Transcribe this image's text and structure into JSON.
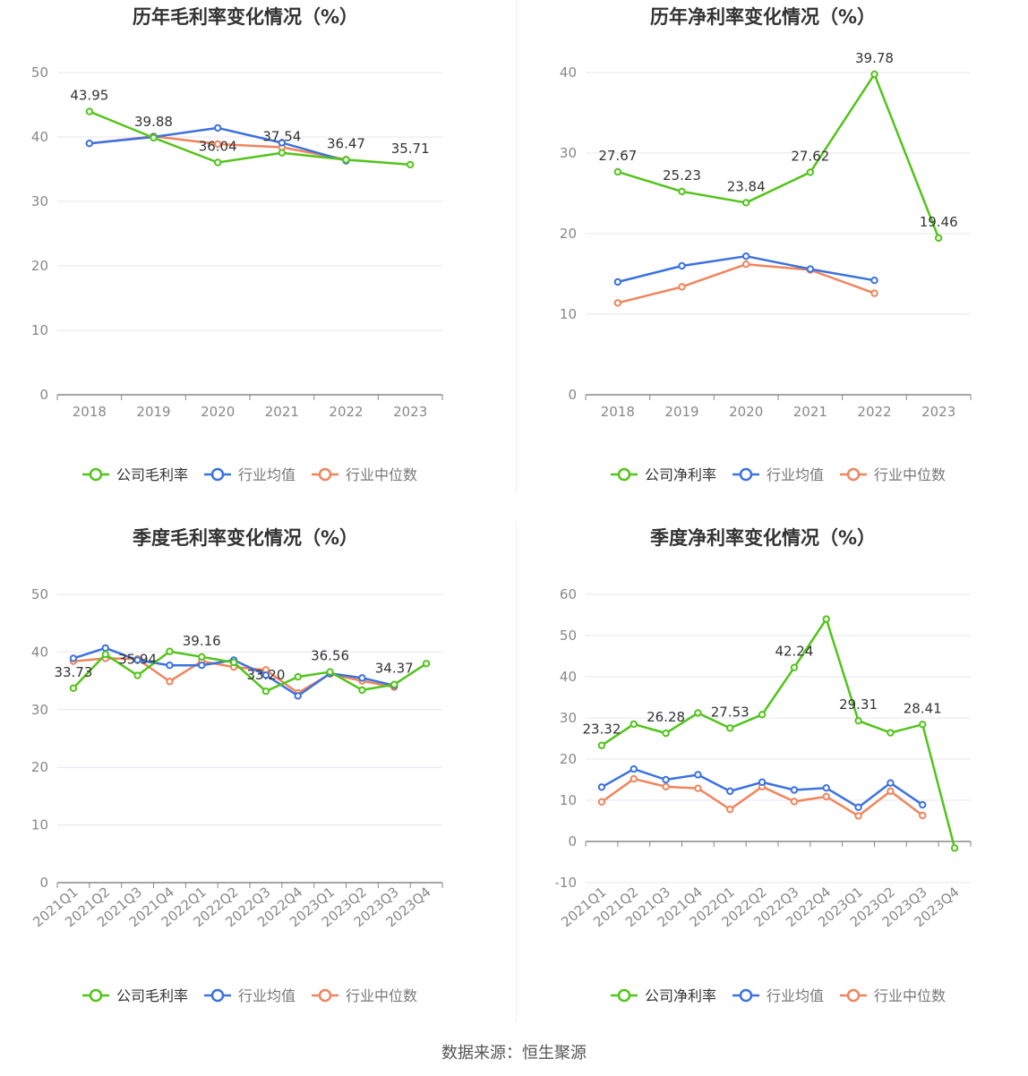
{
  "colors": {
    "company": "#52c41a",
    "avg": "#3b72e0",
    "median": "#f0845c",
    "grid": "#e6e6f0",
    "axis": "#888888"
  },
  "source": "数据来源：恒生聚源",
  "chart_data": [
    {
      "type": "line",
      "title": "历年毛利率变化情况（%）",
      "categories": [
        "2018",
        "2019",
        "2020",
        "2021",
        "2022",
        "2023"
      ],
      "ylim": [
        0,
        50
      ],
      "yticks": [
        0,
        10,
        20,
        30,
        40,
        50
      ],
      "series": [
        {
          "name": "公司毛利率",
          "key": "company",
          "values": [
            43.95,
            39.88,
            36.04,
            37.54,
            36.47,
            35.71
          ],
          "labels": [
            "43.95",
            "39.88",
            "36.04",
            "37.54",
            "36.47",
            "35.71"
          ]
        },
        {
          "name": "行业均值",
          "key": "avg",
          "values": [
            39.0,
            40.0,
            41.4,
            39.1,
            36.3,
            null
          ]
        },
        {
          "name": "行业中位数",
          "key": "median",
          "values": [
            39.0,
            40.1,
            38.9,
            38.4,
            36.5,
            null
          ]
        }
      ],
      "legend": "bottom"
    },
    {
      "type": "line",
      "title": "历年净利率变化情况（%）",
      "categories": [
        "2018",
        "2019",
        "2020",
        "2021",
        "2022",
        "2023"
      ],
      "ylim": [
        0,
        40
      ],
      "yticks": [
        0,
        10,
        20,
        30,
        40
      ],
      "series": [
        {
          "name": "公司净利率",
          "key": "company",
          "values": [
            27.67,
            25.23,
            23.84,
            27.62,
            39.78,
            19.46
          ],
          "labels": [
            "27.67",
            "25.23",
            "23.84",
            "27.62",
            "39.78",
            "19.46"
          ]
        },
        {
          "name": "行业均值",
          "key": "avg",
          "values": [
            14.0,
            16.0,
            17.2,
            15.6,
            14.2,
            null
          ]
        },
        {
          "name": "行业中位数",
          "key": "median",
          "values": [
            11.4,
            13.4,
            16.2,
            15.5,
            12.6,
            null
          ]
        }
      ],
      "legend": "bottom"
    },
    {
      "type": "line",
      "title": "季度毛利率变化情况（%）",
      "categories": [
        "2021Q1",
        "2021Q2",
        "2021Q3",
        "2021Q4",
        "2022Q1",
        "2022Q2",
        "2022Q3",
        "2022Q4",
        "2023Q1",
        "2023Q2",
        "2023Q3",
        "2023Q4"
      ],
      "ylim": [
        0,
        50
      ],
      "yticks": [
        0,
        10,
        20,
        30,
        40,
        50
      ],
      "series": [
        {
          "name": "公司毛利率",
          "key": "company",
          "values": [
            33.73,
            39.6,
            35.94,
            40.1,
            39.16,
            38.2,
            33.2,
            35.7,
            36.56,
            33.4,
            34.37,
            38.0
          ],
          "labels": [
            "33.73",
            "",
            "35.94",
            "",
            "39.16",
            "",
            "33.20",
            "",
            "36.56",
            "",
            "34.37",
            ""
          ]
        },
        {
          "name": "行业均值",
          "key": "avg",
          "values": [
            38.9,
            40.7,
            38.6,
            37.7,
            37.7,
            38.6,
            36.0,
            32.4,
            36.3,
            35.5,
            34.2,
            null
          ]
        },
        {
          "name": "行业中位数",
          "key": "median",
          "values": [
            38.4,
            38.9,
            38.8,
            34.9,
            38.4,
            37.4,
            36.9,
            32.9,
            36.2,
            35.0,
            33.9,
            null
          ]
        }
      ],
      "legend": "bottom"
    },
    {
      "type": "line",
      "title": "季度净利率变化情况（%）",
      "categories": [
        "2021Q1",
        "2021Q2",
        "2021Q3",
        "2021Q4",
        "2022Q1",
        "2022Q2",
        "2022Q3",
        "2022Q4",
        "2023Q1",
        "2023Q2",
        "2023Q3",
        "2023Q4"
      ],
      "ylim": [
        -10,
        60
      ],
      "yticks": [
        -10,
        0,
        10,
        20,
        30,
        40,
        50,
        60
      ],
      "series": [
        {
          "name": "公司净利率",
          "key": "company",
          "values": [
            23.32,
            28.5,
            26.28,
            31.2,
            27.53,
            30.8,
            42.24,
            54.0,
            29.31,
            26.4,
            28.41,
            -1.6
          ],
          "labels": [
            "23.32",
            "",
            "26.28",
            "",
            "27.53",
            "",
            "42.24",
            "",
            "29.31",
            "",
            "28.41",
            ""
          ]
        },
        {
          "name": "行业均值",
          "key": "avg",
          "values": [
            13.2,
            17.6,
            15.0,
            16.2,
            12.2,
            14.4,
            12.5,
            13.0,
            8.3,
            14.2,
            8.9,
            null
          ]
        },
        {
          "name": "行业中位数",
          "key": "median",
          "values": [
            9.6,
            15.2,
            13.3,
            12.9,
            7.8,
            13.3,
            9.7,
            10.9,
            6.2,
            12.2,
            6.3,
            null
          ]
        }
      ],
      "legend": "bottom"
    }
  ]
}
